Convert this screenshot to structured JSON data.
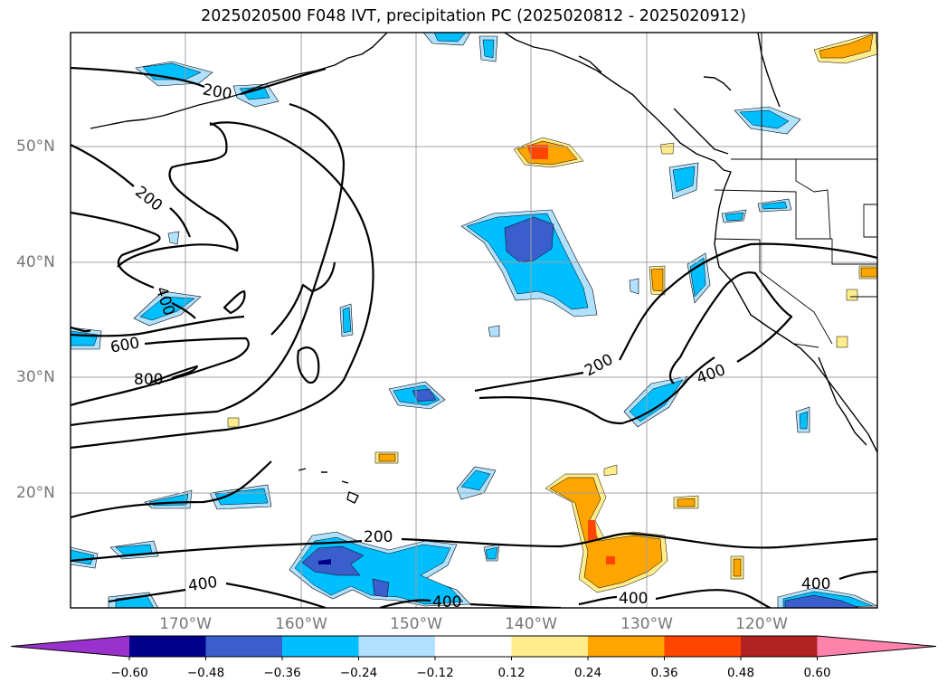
{
  "title": "2025020500 F048 IVT, precipitation PC (2025020812 - 2025020912)",
  "lat_labels": [
    "50°N",
    "40°N",
    "30°N",
    "20°N"
  ],
  "lon_labels": [
    "170°W",
    "160°W",
    "150°W",
    "140°W",
    "130°W",
    "120°W"
  ],
  "contour_labels": [
    "200",
    "200",
    "400",
    "600",
    "800",
    "200",
    "400",
    "200",
    "400",
    "400",
    "400",
    "400"
  ],
  "colorbar": {
    "colors": [
      "#9932cc",
      "#00008b",
      "#3a5fcd",
      "#00bfff",
      "#b0e2ff",
      "#ffffff",
      "#ffec8b",
      "#ffa500",
      "#ff4500",
      "#b22222",
      "#ff82ab"
    ],
    "ticks": [
      "−0.60",
      "−0.48",
      "−0.36",
      "−0.24",
      "−0.12",
      "0.12",
      "0.24",
      "0.36",
      "0.48",
      "0.60"
    ]
  }
}
